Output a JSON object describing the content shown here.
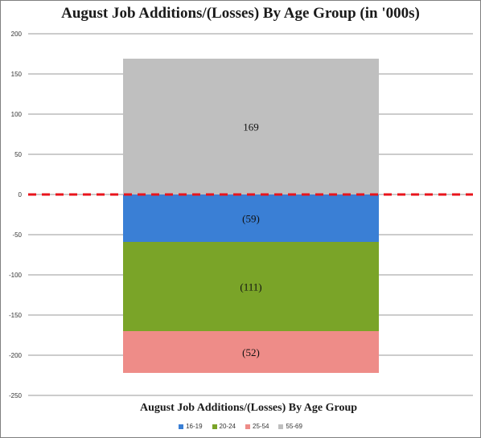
{
  "title": "August Job Additions/(Losses) By Age Group (in '000s)",
  "chart_data": {
    "type": "bar",
    "stacked": true,
    "title": "August Job Additions/(Losses) By Age Group (in '000s)",
    "xlabel": "August Job Additions/(Losses) By Age Group",
    "ylabel": "",
    "ylim": [
      -250,
      200
    ],
    "yticks": [
      200,
      150,
      100,
      50,
      0,
      -50,
      -100,
      -150,
      -200,
      -250
    ],
    "grid": true,
    "legend_position": "bottom",
    "reference_line": {
      "y": 0,
      "color": "#e8141c",
      "style": "dashed"
    },
    "series": [
      {
        "name": "16-19",
        "value": -59,
        "label": "(59)",
        "color": "#3a7fd5"
      },
      {
        "name": "20-24",
        "value": -111,
        "label": "(111)",
        "color": "#7aa428"
      },
      {
        "name": "25-54",
        "value": -52,
        "label": "(52)",
        "color": "#ee8c88"
      },
      {
        "name": "55-69",
        "value": 169,
        "label": "169",
        "color": "#bfbfbf"
      }
    ]
  }
}
